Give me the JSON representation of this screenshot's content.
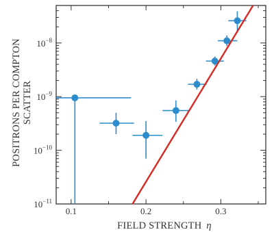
{
  "chart_data": {
    "type": "scatter",
    "xlabel": "FIELD STRENGTH",
    "xlabel_symbol": "η",
    "ylabel_line1": "POSITRONS PER COMPTON",
    "ylabel_line2": "SCATTER",
    "xlim": [
      0.08,
      0.36
    ],
    "ylog": true,
    "ylim": [
      1e-11,
      5e-08
    ],
    "x_ticks": [
      {
        "value": 0.1,
        "label": "0.1"
      },
      {
        "value": 0.2,
        "label": "0.2"
      },
      {
        "value": 0.3,
        "label": "0.3"
      }
    ],
    "y_ticks": [
      {
        "exp": -11,
        "base": "10",
        "power": "−11"
      },
      {
        "exp": -10,
        "base": "10",
        "power": "−10"
      },
      {
        "exp": -9,
        "base": "10",
        "power": "−9"
      },
      {
        "exp": -8,
        "base": "10",
        "power": "−8"
      }
    ],
    "points": [
      {
        "x": 0.105,
        "y": 9.5e-10,
        "xerr": [
          0.08,
          0.18
        ],
        "yerr": [
          1e-11,
          9.5e-10
        ]
      },
      {
        "x": 0.16,
        "y": 3.2e-10,
        "xerr": [
          0.138,
          0.184
        ],
        "yerr": [
          2e-10,
          5e-10
        ]
      },
      {
        "x": 0.2,
        "y": 1.9e-10,
        "xerr": [
          0.182,
          0.222
        ],
        "yerr": [
          7e-11,
          3.5e-10
        ]
      },
      {
        "x": 0.24,
        "y": 5.5e-10,
        "xerr": [
          0.222,
          0.258
        ],
        "yerr": [
          3.4e-10,
          8.5e-10
        ]
      },
      {
        "x": 0.268,
        "y": 1.7e-09,
        "xerr": [
          0.256,
          0.281
        ],
        "yerr": [
          1.35e-09,
          2.15e-09
        ]
      },
      {
        "x": 0.292,
        "y": 4.6e-09,
        "xerr": [
          0.28,
          0.304
        ],
        "yerr": [
          3.8e-09,
          5.6e-09
        ]
      },
      {
        "x": 0.308,
        "y": 1.1e-08,
        "xerr": [
          0.296,
          0.322
        ],
        "yerr": [
          8.8e-09,
          1.38e-08
        ]
      },
      {
        "x": 0.322,
        "y": 2.6e-08,
        "xerr": [
          0.31,
          0.334
        ],
        "yerr": [
          1.7e-08,
          3.9e-08
        ]
      }
    ],
    "fit_line": {
      "x": [
        0.182,
        0.343
      ],
      "y": [
        1e-11,
        5e-08
      ]
    },
    "colors": {
      "points": "#2d8ccb",
      "fit": "#d42a22",
      "frame": "#333333"
    }
  }
}
